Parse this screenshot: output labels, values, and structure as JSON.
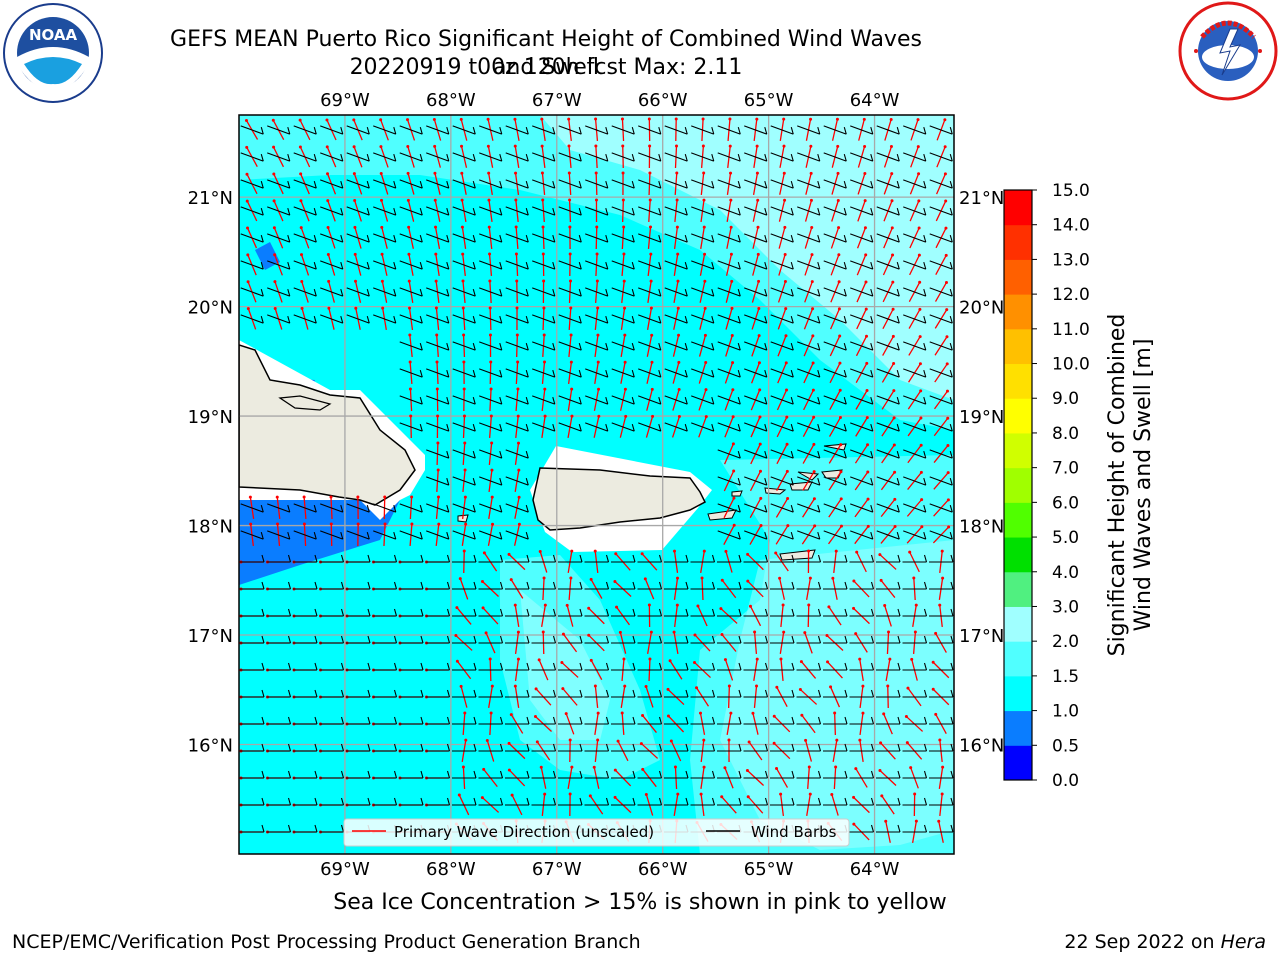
{
  "header": {
    "title_line1": "GEFS MEAN Puerto Rico Significant Height of Combined Wind Waves and Swell",
    "title_line2": "20220919 t00z 120h fcst   Max: 2.11"
  },
  "logos": {
    "noaa": {
      "text": "NOAA",
      "ring_text": "NATIONAL OCEANIC AND ATMOSPHERIC ADMINISTRATION · U.S. DEPARTMENT OF COMMERCE"
    },
    "nws": {
      "ring_text": "NATIONAL WEATHER SERVICE"
    }
  },
  "chart_data": {
    "type": "heatmap",
    "title": "GEFS MEAN Puerto Rico Significant Height of Combined Wind Waves and Swell",
    "x_tick_labels": [
      "69°W",
      "68°W",
      "67°W",
      "66°W",
      "65°W",
      "64°W"
    ],
    "x_ticks": [
      -69,
      -68,
      -67,
      -66,
      -65,
      -64
    ],
    "y_tick_labels": [
      "21°N",
      "20°N",
      "19°N",
      "18°N",
      "17°N",
      "16°N"
    ],
    "y_ticks": [
      21,
      20,
      19,
      18,
      17,
      16
    ],
    "xlim": [
      -70.0,
      -63.25
    ],
    "ylim": [
      15.0,
      21.75
    ],
    "grid": true,
    "colorbar": {
      "label": "Significant Height of Combined\nWind Waves and Swell [m]",
      "label_line1": "Significant Height of Combined",
      "label_line2": "Wind Waves and Swell [m]",
      "tick_labels": [
        "0.0",
        "0.5",
        "1.0",
        "1.5",
        "2.0",
        "3.0",
        "4.0",
        "5.0",
        "6.0",
        "7.0",
        "8.0",
        "9.0",
        "10.0",
        "11.0",
        "12.0",
        "13.0",
        "14.0",
        "15.0"
      ],
      "colors": [
        "#0000ff",
        "#0a7dff",
        "#00ffff",
        "#50ffff",
        "#a0ffff",
        "#50f080",
        "#00e000",
        "#50ff00",
        "#a0ff00",
        "#d0ff00",
        "#ffff00",
        "#ffe000",
        "#ffc000",
        "#ff9000",
        "#ff6000",
        "#ff3000",
        "#ff0000"
      ]
    },
    "max_value": 2.11,
    "legend": {
      "placement": "bottom-center",
      "entries": [
        {
          "label": "Primary Wave Direction (unscaled)",
          "color": "#ff0000"
        },
        {
          "label": "Wind Barbs",
          "color": "#000000"
        }
      ]
    },
    "fields": {
      "wave_height_regions_m": [
        {
          "range": "0.5-1.0",
          "area": "south of Hispaniola"
        },
        {
          "range": "1.5-2.0",
          "area": "open Atlantic north and east"
        },
        {
          "range": "2.0-3.0",
          "area": "northeast corner and south-central Caribbean"
        }
      ]
    }
  },
  "footer": {
    "sea_ice_note": "Sea Ice Concentration > 15% is shown in pink to yellow",
    "branch": "NCEP/EMC/Verification Post Processing Product Generation Branch",
    "date": "22 Sep 2022 on ",
    "machine": "Hera"
  }
}
